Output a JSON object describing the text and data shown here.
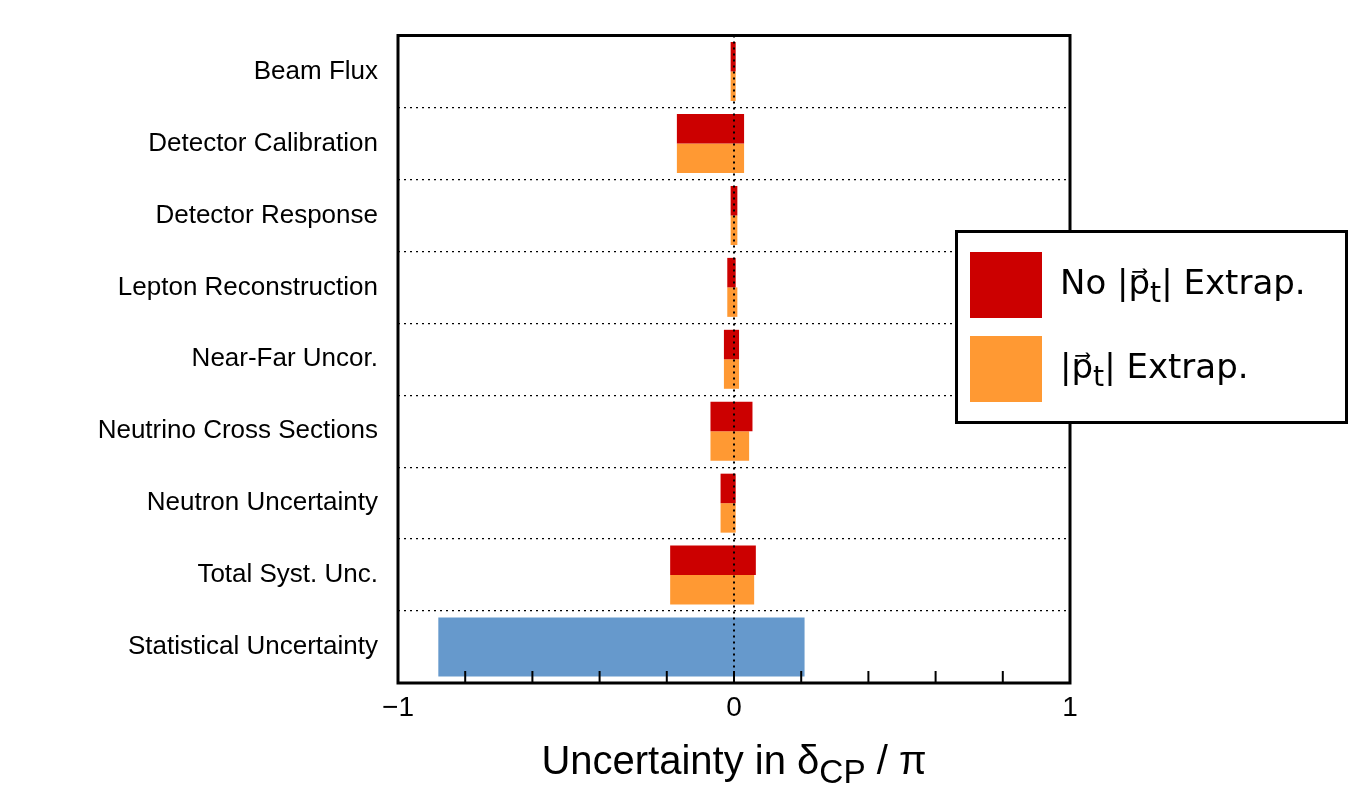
{
  "chart_data": {
    "type": "bar",
    "orientation": "horizontal",
    "xlabel": "Uncertainty in δ$_{CP}$ / π",
    "categories": [
      "Beam Flux",
      "Detector Calibration",
      "Detector Response",
      "Lepton Reconstruction",
      "Near-Far Uncor.",
      "Neutrino Cross Sections",
      "Neutron Uncertainty",
      "Total Syst. Unc.",
      "Statistical Uncertainty"
    ],
    "series": [
      {
        "name": "No |p⃗$_{t}$| Extrap.",
        "color": "#cc0000",
        "base": [
          -0.01,
          -0.17,
          -0.01,
          -0.02,
          -0.03,
          -0.07,
          -0.04,
          -0.19,
          null
        ],
        "values": [
          0.015,
          0.2,
          0.02,
          0.025,
          0.045,
          0.125,
          0.045,
          0.255,
          null
        ]
      },
      {
        "name": "|p⃗$_{t}$| Extrap.",
        "color": "#ff9933",
        "base": [
          -0.01,
          -0.17,
          -0.01,
          -0.02,
          -0.03,
          -0.07,
          -0.04,
          -0.19,
          null
        ],
        "values": [
          0.015,
          0.2,
          0.02,
          0.03,
          0.045,
          0.115,
          0.045,
          0.25,
          null
        ]
      },
      {
        "color": "#6699cc",
        "base": [
          null,
          null,
          null,
          null,
          null,
          null,
          null,
          null,
          -0.88
        ],
        "values": [
          null,
          null,
          null,
          null,
          null,
          null,
          null,
          null,
          1.09
        ]
      }
    ],
    "xlim": [
      -1,
      1
    ],
    "xticks": [
      {
        "value": -1,
        "label": "−1"
      },
      {
        "value": -0.8,
        "label": null
      },
      {
        "value": -0.6,
        "label": null
      },
      {
        "value": -0.4,
        "label": null
      },
      {
        "value": -0.2,
        "label": null
      },
      0,
      {
        "value": 0.2,
        "label": null
      },
      {
        "value": 0.4,
        "label": null
      },
      {
        "value": 0.6,
        "label": null
      },
      {
        "value": 0.8,
        "label": null
      },
      1
    ],
    "ref_lines": [
      {
        "axis": "x",
        "value": 0,
        "color": "#000000",
        "line_style": "dotted"
      }
    ],
    "grid": "y",
    "legend": "right"
  }
}
